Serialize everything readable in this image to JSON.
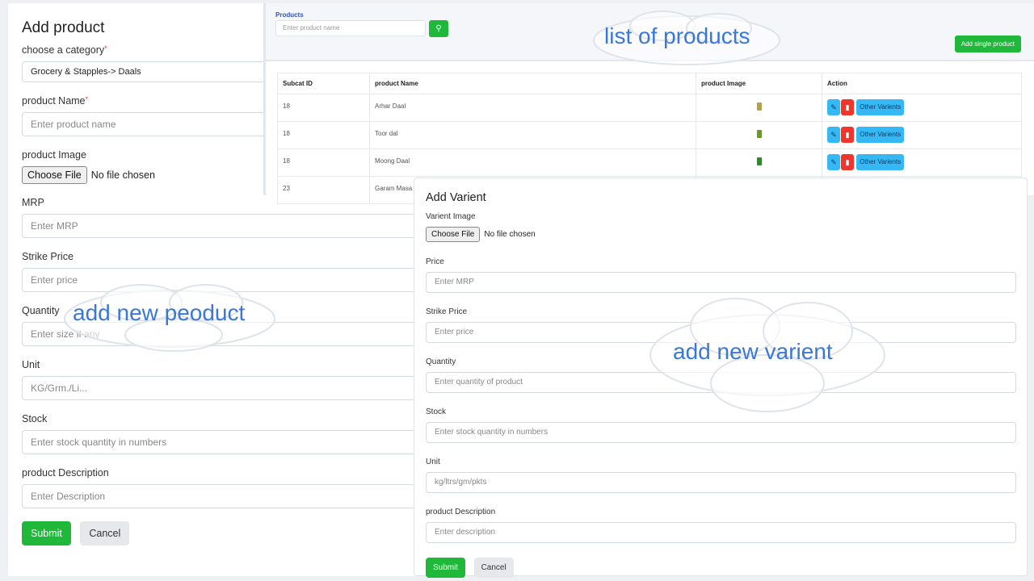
{
  "add_product": {
    "title": "Add product",
    "category_label": "choose a category",
    "category_value": "Grocery & Stapples-> Daals",
    "name_label": "product Name",
    "name_placeholder": "Enter product name",
    "image_label": "product Image",
    "choose_file": "Choose File",
    "no_file": "No file chosen",
    "mrp_label": "MRP",
    "mrp_placeholder": "Enter MRP",
    "strike_label": "Strike Price",
    "strike_placeholder": "Enter price",
    "qty_label": "Quantity",
    "qty_placeholder": "Enter size if any",
    "unit_label": "Unit",
    "unit_placeholder": "KG/Grm./Li...",
    "stock_label": "Stock",
    "stock_placeholder": "Enter stock quantity in numbers",
    "desc_label": "product Description",
    "desc_placeholder": "Enter Description",
    "submit": "Submit",
    "cancel": "Cancel"
  },
  "products": {
    "title": "Products",
    "search_placeholder": "Enter product name",
    "add_single": "Add single product",
    "columns": [
      "Subcat ID",
      "product Name",
      "product Image",
      "Action"
    ],
    "rows": [
      {
        "id": "18",
        "name": "Arhar Daal",
        "thumb": "#b8a04a"
      },
      {
        "id": "18",
        "name": "Toor dal",
        "thumb": "#6a9a2a"
      },
      {
        "id": "18",
        "name": "Moong Daal",
        "thumb": "#2f8a2a"
      },
      {
        "id": "23",
        "name": "Garam Masa"
      }
    ],
    "other_variants": "Other Varients"
  },
  "add_variant": {
    "title": "Add Varient",
    "image_label": "Varient Image",
    "choose_file": "Choose File",
    "no_file": "No file chosen",
    "price_label": "Price",
    "price_placeholder": "Enter MRP",
    "strike_label": "Strike Price",
    "strike_placeholder": "Enter price",
    "qty_label": "Quantity",
    "qty_placeholder": "Enter quantity of product",
    "stock_label": "Stock",
    "stock_placeholder": "Enter stock quantity in numbers",
    "unit_label": "Unit",
    "unit_placeholder": "kg/ltrs/gm/pkts",
    "desc_label": "product Description",
    "desc_placeholder": "Enter description",
    "submit": "Submit",
    "cancel": "Cancel"
  },
  "annotations": {
    "list": "list of products",
    "new_product": "add new peoduct",
    "new_variant": "add new varient"
  },
  "colors": {
    "green": "#1fb83a",
    "blue": "#35b8f3",
    "red": "#f0352c",
    "annotation": "#3a78d8"
  }
}
